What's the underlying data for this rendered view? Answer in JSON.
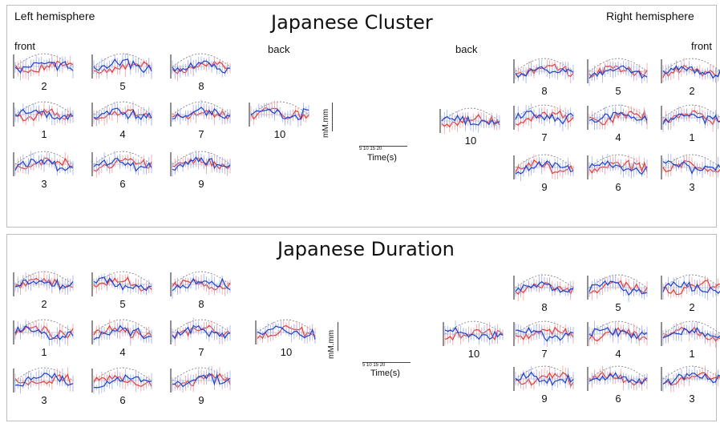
{
  "panels": [
    {
      "title": "Japanese Cluster",
      "labels": {
        "left_hemi": "Left hemisphere",
        "right_hemi": "Right hemisphere",
        "front_left": "front",
        "back_left": "back",
        "back_right": "back",
        "front_right": "front"
      }
    },
    {
      "title": "Japanese Duration",
      "labels": {}
    }
  ],
  "scale": {
    "unit": "mM.mm",
    "x_ticks": "5  10  15  20",
    "x_label": "Time(s)"
  },
  "colors": {
    "series_red": "#e53935",
    "series_blue": "#1e40c8",
    "template": "#666666",
    "error_red": "#f0a0a0",
    "error_blue": "#9db0f0"
  },
  "chart_data": [
    {
      "type": "line",
      "title": "Japanese Cluster",
      "xlabel": "Time(s)",
      "ylabel": "mM.mm",
      "x": [
        0,
        2,
        4,
        6,
        8,
        10,
        12,
        14,
        16,
        18,
        20
      ],
      "channels": {
        "left": [
          [
            "2",
            "5",
            "8"
          ],
          [
            "1",
            "4",
            "7",
            "10"
          ],
          [
            "3",
            "6",
            "9"
          ]
        ],
        "right": [
          [
            "8",
            "5",
            "2"
          ],
          [
            "10",
            "7",
            "4",
            "1"
          ],
          [
            "9",
            "6",
            "3"
          ]
        ]
      }
    },
    {
      "type": "line",
      "title": "Japanese Duration",
      "xlabel": "Time(s)",
      "ylabel": "mM.mm",
      "x": [
        0,
        2,
        4,
        6,
        8,
        10,
        12,
        14,
        16,
        18,
        20
      ],
      "channels": {
        "left": [
          [
            "2",
            "5",
            "8"
          ],
          [
            "1",
            "4",
            "7",
            "10"
          ],
          [
            "3",
            "6",
            "9"
          ]
        ],
        "right": [
          [
            "8",
            "5",
            "2"
          ],
          [
            "10",
            "7",
            "4",
            "1"
          ],
          [
            "9",
            "6",
            "3"
          ]
        ]
      }
    }
  ]
}
